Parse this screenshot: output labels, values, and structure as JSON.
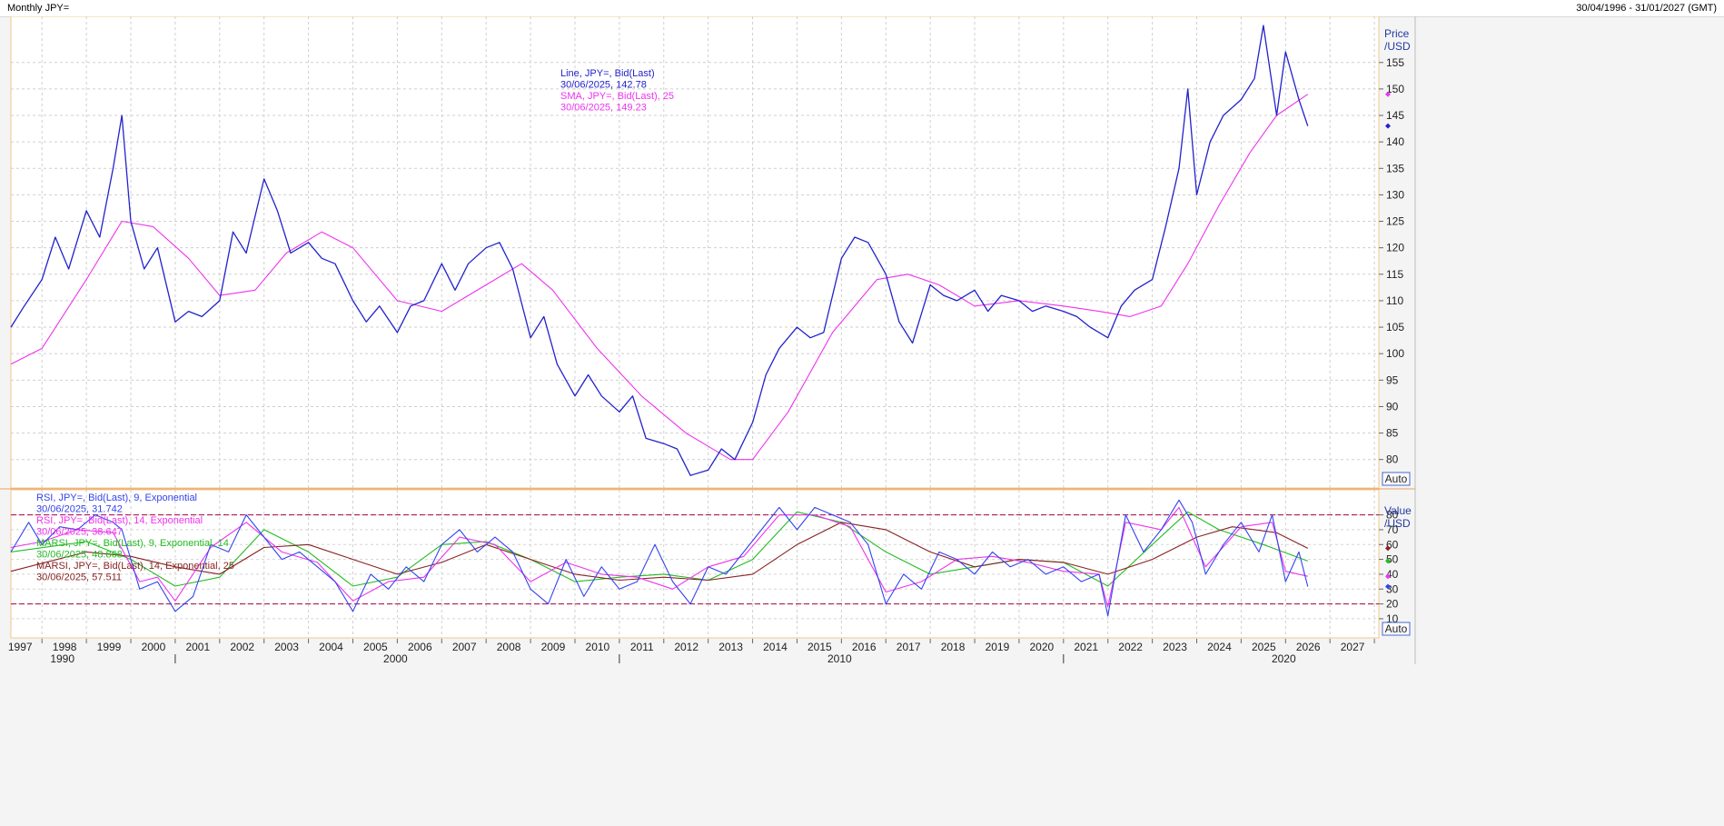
{
  "header": {
    "title": "Monthly JPY=",
    "range": "30/04/1996 - 31/01/2027 (GMT)"
  },
  "auto_label": "Auto",
  "colors": {
    "price": "#2222cc",
    "sma": "#ee33ee",
    "rsi9": "#3344ee",
    "rsi14": "#ee33ee",
    "marsi9": "#22bb22",
    "marsi14": "#882222",
    "band": "#aa0044"
  },
  "chart_data": [
    {
      "type": "line",
      "panel": "price",
      "ylabel": "Price\n/USD",
      "ylim": [
        76,
        162
      ],
      "yticks": [
        80,
        85,
        90,
        95,
        100,
        105,
        110,
        115,
        120,
        125,
        130,
        135,
        140,
        145,
        150,
        155
      ],
      "xlim": [
        1996.3,
        2027.1
      ],
      "xticks": [
        "1997",
        "1998",
        "1999",
        "2000",
        "2001",
        "2002",
        "2003",
        "2004",
        "2005",
        "2006",
        "2007",
        "2008",
        "2009",
        "2010",
        "2011",
        "2012",
        "2013",
        "2014",
        "2015",
        "2016",
        "2017",
        "2018",
        "2019",
        "2020",
        "2021",
        "2022",
        "2023",
        "2024",
        "2025",
        "2026",
        "2027"
      ],
      "decades": [
        "1990",
        "2000",
        "2010",
        "2020"
      ],
      "legend": [
        {
          "text": "Line, JPY=, Bid(Last)",
          "color": "#2222cc"
        },
        {
          "text": "30/06/2025, 142.78",
          "color": "#2222cc"
        },
        {
          "text": "SMA, JPY=, Bid(Last),  25",
          "color": "#ee33ee"
        },
        {
          "text": "30/06/2025, 149.23",
          "color": "#ee33ee"
        }
      ],
      "series": [
        {
          "name": "Line, JPY=, Bid(Last)",
          "x": [
            1996.3,
            1996.6,
            1997.0,
            1997.3,
            1997.6,
            1998.0,
            1998.3,
            1998.6,
            1998.8,
            1999.0,
            1999.3,
            1999.6,
            2000.0,
            2000.3,
            2000.6,
            2001.0,
            2001.3,
            2001.6,
            2002.0,
            2002.3,
            2002.6,
            2003.0,
            2003.3,
            2003.6,
            2004.0,
            2004.3,
            2004.6,
            2005.0,
            2005.3,
            2005.6,
            2006.0,
            2006.3,
            2006.6,
            2007.0,
            2007.3,
            2007.6,
            2008.0,
            2008.3,
            2008.6,
            2009.0,
            2009.3,
            2009.6,
            2010.0,
            2010.3,
            2010.6,
            2011.0,
            2011.3,
            2011.6,
            2012.0,
            2012.3,
            2012.6,
            2013.0,
            2013.3,
            2013.6,
            2014.0,
            2014.3,
            2014.6,
            2015.0,
            2015.3,
            2015.6,
            2016.0,
            2016.3,
            2016.6,
            2017.0,
            2017.3,
            2017.6,
            2018.0,
            2018.3,
            2018.6,
            2019.0,
            2019.3,
            2019.6,
            2020.0,
            2020.3,
            2020.6,
            2021.0,
            2021.3,
            2021.6,
            2022.0,
            2022.3,
            2022.6,
            2022.8,
            2023.0,
            2023.3,
            2023.6,
            2024.0,
            2024.3,
            2024.5,
            2024.8,
            2025.0,
            2025.3,
            2025.5
          ],
          "values": [
            105,
            109,
            114,
            122,
            116,
            127,
            122,
            135,
            145,
            125,
            116,
            120,
            106,
            108,
            107,
            110,
            123,
            119,
            133,
            127,
            119,
            121,
            118,
            117,
            110,
            106,
            109,
            104,
            109,
            110,
            117,
            112,
            117,
            120,
            121,
            116,
            103,
            107,
            98,
            92,
            96,
            92,
            89,
            92,
            84,
            83,
            82,
            77,
            78,
            82,
            80,
            87,
            96,
            101,
            105,
            103,
            104,
            118,
            122,
            121,
            115,
            106,
            102,
            113,
            111,
            110,
            112,
            108,
            111,
            110,
            108,
            109,
            108,
            107,
            105,
            103,
            109,
            112,
            114,
            124,
            135,
            150,
            130,
            140,
            145,
            148,
            152,
            162,
            145,
            157,
            148,
            143
          ]
        },
        {
          "name": "SMA, JPY=, Bid(Last),  25",
          "x": [
            1996.3,
            1997.0,
            1998.0,
            1998.8,
            1999.5,
            2000.3,
            2001.0,
            2001.8,
            2002.5,
            2003.3,
            2004.0,
            2005.0,
            2006.0,
            2007.0,
            2007.8,
            2008.5,
            2009.5,
            2010.5,
            2011.5,
            2012.5,
            2013.0,
            2013.8,
            2014.8,
            2015.8,
            2016.5,
            2017.2,
            2018.0,
            2019.0,
            2020.0,
            2020.8,
            2021.5,
            2022.2,
            2022.8,
            2023.5,
            2024.2,
            2024.8,
            2025.5
          ],
          "values": [
            98,
            101,
            114,
            125,
            124,
            118,
            111,
            112,
            119,
            123,
            120,
            110,
            108,
            113,
            117,
            112,
            101,
            92,
            85,
            80,
            80,
            89,
            104,
            114,
            115,
            113,
            109,
            110,
            109,
            108,
            107,
            109,
            117,
            128,
            138,
            145,
            149
          ]
        }
      ]
    },
    {
      "type": "line",
      "panel": "indicator",
      "ylabel": "Value\n/USD",
      "ylim": [
        2,
        92
      ],
      "yticks": [
        10,
        20,
        30,
        40,
        50,
        60,
        70,
        80
      ],
      "bands": [
        20,
        80
      ],
      "xlim": [
        1996.3,
        2027.1
      ],
      "legend": [
        {
          "text": "RSI, JPY=, Bid(Last),  9, Exponential",
          "color": "#3344ee"
        },
        {
          "text": "30/06/2025, 31.742",
          "color": "#3344ee"
        },
        {
          "text": "RSI, JPY=, Bid(Last),  14, Exponential",
          "color": "#ee33ee"
        },
        {
          "text": "30/06/2025, 38.647",
          "color": "#ee33ee"
        },
        {
          "text": "MARSI, JPY=, Bid(Last),  9, Exponential, 14",
          "color": "#22bb22"
        },
        {
          "text": "30/06/2025, 48.868",
          "color": "#22bb22"
        },
        {
          "text": "MARSI, JPY=, Bid(Last),  14, Exponential, 25",
          "color": "#882222"
        },
        {
          "text": "30/06/2025, 57.511",
          "color": "#882222"
        }
      ],
      "series": [
        {
          "name": "RSI, JPY=, Bid(Last),  9, Exponential",
          "x": [
            1996.3,
            1996.7,
            1997.0,
            1997.4,
            1997.8,
            1998.2,
            1998.6,
            1998.8,
            1999.2,
            1999.6,
            2000.0,
            2000.4,
            2000.8,
            2001.2,
            2001.6,
            2002.0,
            2002.4,
            2002.8,
            2003.2,
            2003.6,
            2004.0,
            2004.4,
            2004.8,
            2005.2,
            2005.6,
            2006.0,
            2006.4,
            2006.8,
            2007.2,
            2007.6,
            2008.0,
            2008.4,
            2008.8,
            2009.2,
            2009.6,
            2010.0,
            2010.4,
            2010.8,
            2011.2,
            2011.6,
            2012.0,
            2012.4,
            2012.8,
            2013.2,
            2013.6,
            2014.0,
            2014.4,
            2014.8,
            2015.2,
            2015.6,
            2016.0,
            2016.4,
            2016.8,
            2017.2,
            2017.6,
            2018.0,
            2018.4,
            2018.8,
            2019.2,
            2019.6,
            2020.0,
            2020.4,
            2020.8,
            2021.0,
            2021.4,
            2021.8,
            2022.2,
            2022.6,
            2022.9,
            2023.2,
            2023.6,
            2024.0,
            2024.4,
            2024.7,
            2025.0,
            2025.3,
            2025.5
          ],
          "values": [
            55,
            75,
            60,
            72,
            70,
            80,
            75,
            70,
            30,
            35,
            15,
            25,
            60,
            55,
            80,
            65,
            50,
            55,
            45,
            35,
            15,
            40,
            30,
            45,
            35,
            60,
            70,
            55,
            65,
            55,
            30,
            20,
            50,
            25,
            45,
            30,
            35,
            60,
            35,
            20,
            45,
            40,
            55,
            70,
            85,
            70,
            85,
            80,
            75,
            60,
            20,
            40,
            30,
            55,
            50,
            40,
            55,
            45,
            50,
            40,
            45,
            35,
            40,
            12,
            80,
            55,
            70,
            90,
            75,
            40,
            60,
            75,
            55,
            80,
            35,
            55,
            31.7
          ]
        },
        {
          "name": "RSI, JPY=, Bid(Last),  14, Exponential",
          "x": [
            1996.3,
            1997.0,
            1997.8,
            1998.6,
            1999.2,
            1999.6,
            2000.0,
            2000.8,
            2001.6,
            2002.4,
            2003.2,
            2004.0,
            2004.8,
            2005.6,
            2006.4,
            2007.2,
            2008.0,
            2008.8,
            2009.6,
            2010.4,
            2011.2,
            2012.0,
            2012.8,
            2013.6,
            2014.4,
            2015.2,
            2016.0,
            2016.8,
            2017.6,
            2018.4,
            2019.2,
            2020.0,
            2020.8,
            2021.0,
            2021.4,
            2022.2,
            2022.6,
            2023.2,
            2024.0,
            2024.7,
            2025.0,
            2025.5
          ],
          "values": [
            58,
            62,
            70,
            68,
            35,
            38,
            22,
            58,
            75,
            55,
            48,
            22,
            35,
            38,
            65,
            60,
            35,
            48,
            40,
            38,
            30,
            45,
            52,
            80,
            80,
            72,
            28,
            35,
            50,
            52,
            48,
            42,
            40,
            18,
            75,
            70,
            85,
            45,
            72,
            75,
            42,
            38.6
          ]
        },
        {
          "name": "MARSI, JPY=, Bid(Last),  9, Exponential, 14",
          "x": [
            1996.3,
            1998.0,
            1999.0,
            2000.0,
            2001.0,
            2002.0,
            2003.0,
            2004.0,
            2005.0,
            2006.0,
            2007.0,
            2008.0,
            2009.0,
            2010.0,
            2011.0,
            2012.0,
            2013.0,
            2014.0,
            2015.0,
            2016.0,
            2017.0,
            2018.0,
            2019.0,
            2020.0,
            2021.0,
            2022.0,
            2022.8,
            2023.5,
            2024.5,
            2025.5
          ],
          "values": [
            55,
            62,
            50,
            32,
            38,
            70,
            55,
            32,
            38,
            60,
            62,
            50,
            35,
            38,
            40,
            36,
            50,
            82,
            75,
            55,
            40,
            45,
            50,
            48,
            32,
            60,
            82,
            70,
            60,
            48.9
          ]
        },
        {
          "name": "MARSI, JPY=, Bid(Last),  14, Exponential, 25",
          "x": [
            1996.3,
            1998.0,
            1999.0,
            2000.0,
            2001.0,
            2002.0,
            2003.0,
            2004.0,
            2005.0,
            2006.0,
            2007.0,
            2008.0,
            2009.0,
            2010.0,
            2011.0,
            2012.0,
            2013.0,
            2014.0,
            2015.0,
            2016.0,
            2017.0,
            2018.0,
            2019.0,
            2020.0,
            2021.0,
            2022.0,
            2023.0,
            2023.8,
            2024.8,
            2025.5
          ],
          "values": [
            42,
            55,
            52,
            45,
            40,
            58,
            60,
            50,
            40,
            48,
            60,
            50,
            40,
            36,
            38,
            36,
            40,
            60,
            75,
            70,
            55,
            45,
            50,
            48,
            40,
            50,
            65,
            72,
            68,
            57.5
          ]
        }
      ]
    }
  ]
}
